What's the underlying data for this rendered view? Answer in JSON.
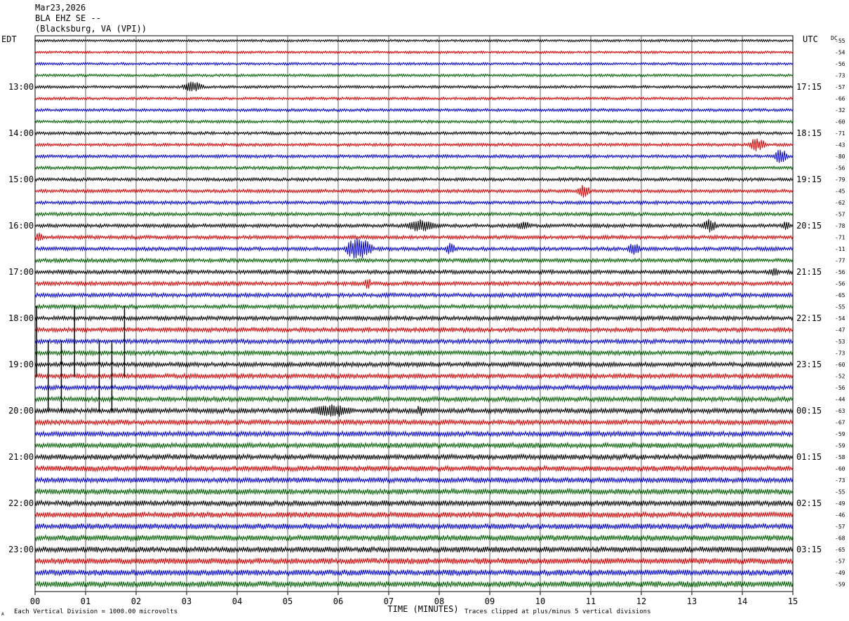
{
  "header": {
    "date": "Mar23,2026",
    "station": "BLA EHZ SE --",
    "location": "(Blacksburg, VA (VPI))"
  },
  "labels": {
    "left_tz": "EDT",
    "right_tz": "UTC",
    "dc": "DC",
    "xlabel": "TIME (MINUTES)",
    "footer_left": "Each Vertical Division = 1000.00 microvolts",
    "footer_right": "Traces clipped at plus/minus 5 vertical divisions",
    "corner_mark": "A"
  },
  "chart_data": {
    "type": "line",
    "subtype": "helicorder",
    "title": "Mar23,2026 BLA EHZ SE -- (Blacksburg, VA (VPI))",
    "xlabel": "TIME (MINUTES)",
    "xlim": [
      0,
      15
    ],
    "x_ticks": [
      "00",
      "01",
      "02",
      "03",
      "04",
      "05",
      "06",
      "07",
      "08",
      "09",
      "10",
      "11",
      "12",
      "13",
      "14",
      "15"
    ],
    "grid": "vertical lines at each minute",
    "trace_count": 48,
    "trace_colors": [
      "#000000",
      "#e00000",
      "#0000e0",
      "#006000"
    ],
    "left_hour_labels": [
      "13:00",
      "14:00",
      "15:00",
      "16:00",
      "17:00",
      "18:00",
      "19:00",
      "20:00",
      "21:00",
      "22:00",
      "23:00"
    ],
    "right_hour_labels": [
      "17:15",
      "18:15",
      "19:15",
      "20:15",
      "21:15",
      "22:15",
      "23:15",
      "00:15",
      "01:15",
      "02:15",
      "03:15"
    ],
    "first_labeled_trace": 4,
    "dc_offsets": [
      -55,
      -54,
      -56,
      -73,
      -57,
      -66,
      -32,
      -60,
      -71,
      -43,
      -80,
      -56,
      -79,
      -45,
      -62,
      -57,
      -78,
      -71,
      -11,
      -77,
      -56,
      -56,
      -65,
      -55,
      -54,
      -47,
      -53,
      -73,
      -60,
      -52,
      -56,
      -44,
      -63,
      -67,
      -59,
      -59,
      -58,
      -60,
      -73,
      -55,
      -49,
      -46,
      -57,
      -68,
      -65,
      -57,
      -49,
      -59
    ],
    "events": [
      {
        "trace": 4,
        "start_min": 2.9,
        "end_min": 3.5,
        "amp": 2.2
      },
      {
        "trace": 9,
        "start_min": 14.1,
        "end_min": 14.6,
        "amp": 2.8
      },
      {
        "trace": 10,
        "start_min": 14.6,
        "end_min": 15.0,
        "amp": 3.0
      },
      {
        "trace": 13,
        "start_min": 10.7,
        "end_min": 11.1,
        "amp": 2.6
      },
      {
        "trace": 16,
        "start_min": 7.3,
        "end_min": 8.2,
        "amp": 2.2
      },
      {
        "trace": 16,
        "start_min": 9.5,
        "end_min": 9.9,
        "amp": 1.6
      },
      {
        "trace": 16,
        "start_min": 13.2,
        "end_min": 13.6,
        "amp": 2.6
      },
      {
        "trace": 16,
        "start_min": 14.8,
        "end_min": 15.0,
        "amp": 2.0
      },
      {
        "trace": 17,
        "start_min": 0.0,
        "end_min": 0.2,
        "amp": 2.4
      },
      {
        "trace": 18,
        "start_min": 6.1,
        "end_min": 6.9,
        "amp": 5.0
      },
      {
        "trace": 18,
        "start_min": 8.1,
        "end_min": 8.4,
        "amp": 2.2
      },
      {
        "trace": 18,
        "start_min": 11.7,
        "end_min": 12.1,
        "amp": 2.6
      },
      {
        "trace": 20,
        "start_min": 14.5,
        "end_min": 14.8,
        "amp": 1.6
      },
      {
        "trace": 21,
        "start_min": 6.5,
        "end_min": 6.7,
        "amp": 2.2
      },
      {
        "trace": 32,
        "start_min": 5.4,
        "end_min": 6.6,
        "amp": 2.2
      },
      {
        "trace": 32,
        "start_min": 7.5,
        "end_min": 7.8,
        "amp": 1.4
      }
    ],
    "spikes": [
      {
        "x_min": 0.03,
        "top_trace": 23,
        "bottom_trace": 29
      },
      {
        "x_min": 0.26,
        "top_trace": 26,
        "bottom_trace": 32
      },
      {
        "x_min": 0.52,
        "top_trace": 26,
        "bottom_trace": 32
      },
      {
        "x_min": 0.78,
        "top_trace": 23,
        "bottom_trace": 29
      },
      {
        "x_min": 1.27,
        "top_trace": 26,
        "bottom_trace": 32
      },
      {
        "x_min": 1.52,
        "top_trace": 26,
        "bottom_trace": 32
      },
      {
        "x_min": 1.77,
        "top_trace": 23,
        "bottom_trace": 29
      }
    ],
    "noise_profile": "increasing toward bottom traces"
  }
}
